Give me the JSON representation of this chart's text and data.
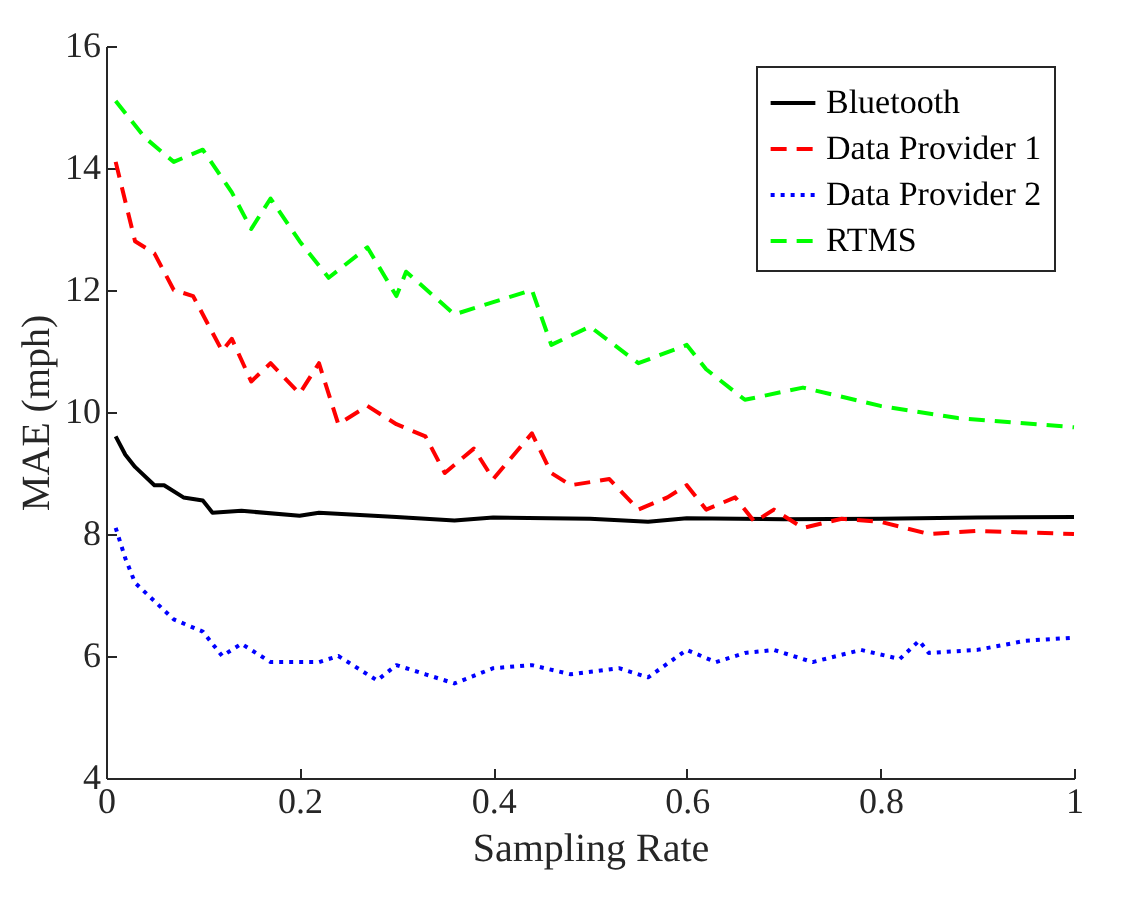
{
  "chart_data": {
    "type": "line",
    "xlabel": "Sampling Rate",
    "ylabel": "MAE (mph)",
    "xlim": [
      0,
      1
    ],
    "xticks": [
      0,
      0.2,
      0.4,
      0.6,
      0.8,
      1
    ],
    "ylim": [
      4,
      16
    ],
    "yticks": [
      4,
      6,
      8,
      10,
      12,
      14,
      16
    ],
    "grid": false,
    "legend": "top right",
    "marker": "none",
    "series": [
      {
        "name": "Bluetooth",
        "color": "#000000",
        "line_style": "solid",
        "x": [
          0.01,
          0.02,
          0.03,
          0.05,
          0.06,
          0.08,
          0.1,
          0.11,
          0.14,
          0.2,
          0.22,
          0.3,
          0.36,
          0.4,
          0.5,
          0.56,
          0.6,
          0.7,
          0.8,
          0.9,
          1.0
        ],
        "values": [
          9.6,
          9.3,
          9.1,
          8.8,
          8.8,
          8.6,
          8.55,
          8.35,
          8.38,
          8.3,
          8.35,
          8.28,
          8.22,
          8.27,
          8.25,
          8.2,
          8.26,
          8.24,
          8.25,
          8.27,
          8.28
        ]
      },
      {
        "name": "Data Provider 1",
        "color": "#ff0000",
        "line_style": "dashed",
        "x": [
          0.01,
          0.03,
          0.05,
          0.07,
          0.09,
          0.12,
          0.13,
          0.15,
          0.17,
          0.2,
          0.22,
          0.24,
          0.27,
          0.3,
          0.33,
          0.35,
          0.38,
          0.4,
          0.44,
          0.46,
          0.48,
          0.52,
          0.55,
          0.58,
          0.6,
          0.62,
          0.65,
          0.67,
          0.69,
          0.72,
          0.76,
          0.8,
          0.85,
          0.9,
          1.0
        ],
        "values": [
          14.1,
          12.8,
          12.6,
          12.0,
          11.9,
          11.0,
          11.2,
          10.5,
          10.8,
          10.3,
          10.8,
          9.8,
          10.1,
          9.8,
          9.6,
          9.0,
          9.4,
          8.9,
          9.65,
          9.0,
          8.8,
          8.9,
          8.4,
          8.6,
          8.8,
          8.4,
          8.6,
          8.2,
          8.4,
          8.1,
          8.25,
          8.2,
          8.0,
          8.05,
          8.0
        ]
      },
      {
        "name": "Data Provider 2",
        "color": "#0000ff",
        "line_style": "dotted",
        "x": [
          0.01,
          0.02,
          0.03,
          0.05,
          0.07,
          0.1,
          0.12,
          0.14,
          0.17,
          0.22,
          0.24,
          0.28,
          0.3,
          0.33,
          0.36,
          0.4,
          0.44,
          0.48,
          0.53,
          0.56,
          0.6,
          0.63,
          0.66,
          0.69,
          0.73,
          0.78,
          0.82,
          0.84,
          0.85,
          0.9,
          0.95,
          1.0
        ],
        "values": [
          8.1,
          7.6,
          7.2,
          6.9,
          6.6,
          6.4,
          6.0,
          6.2,
          5.9,
          5.9,
          6.0,
          5.6,
          5.85,
          5.7,
          5.55,
          5.8,
          5.85,
          5.7,
          5.8,
          5.65,
          6.1,
          5.9,
          6.05,
          6.1,
          5.9,
          6.1,
          5.95,
          6.25,
          6.05,
          6.1,
          6.25,
          6.3
        ]
      },
      {
        "name": "RTMS",
        "color": "#00ff00",
        "line_style": "dashed",
        "x": [
          0.01,
          0.04,
          0.07,
          0.1,
          0.13,
          0.15,
          0.17,
          0.2,
          0.23,
          0.27,
          0.3,
          0.31,
          0.36,
          0.4,
          0.44,
          0.46,
          0.5,
          0.55,
          0.6,
          0.62,
          0.66,
          0.72,
          0.8,
          0.88,
          1.0
        ],
        "values": [
          15.1,
          14.5,
          14.1,
          14.3,
          13.6,
          13.0,
          13.5,
          12.8,
          12.2,
          12.7,
          11.9,
          12.3,
          11.6,
          11.8,
          12.0,
          11.1,
          11.4,
          10.8,
          11.1,
          10.7,
          10.2,
          10.4,
          10.1,
          9.9,
          9.75
        ]
      }
    ]
  }
}
